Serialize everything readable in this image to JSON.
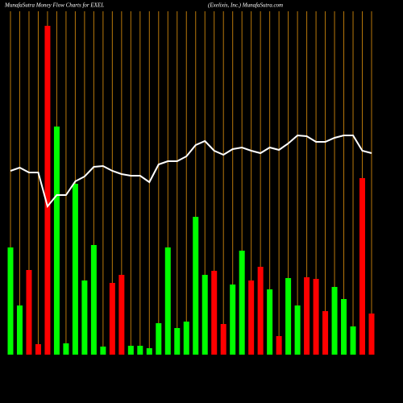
{
  "chart_data": {
    "type": "bar",
    "title": "MunafaSutra  Money Flow  Charts for EXEL",
    "subtitle": "(Exelixis,  Inc.) MunafaSutra.com",
    "categories": [
      null,
      null,
      null,
      null,
      null,
      null,
      null,
      null,
      null,
      null,
      null,
      null,
      null,
      null,
      null,
      null,
      null,
      null,
      null,
      null,
      null,
      null,
      null,
      null,
      null,
      null,
      null,
      null,
      null,
      null,
      null,
      null,
      null,
      null,
      null,
      null,
      null,
      null,
      null,
      null
    ],
    "values": [
      133,
      61,
      105,
      13,
      408,
      283,
      14,
      212,
      92,
      136,
      10,
      89,
      99,
      11,
      11,
      8,
      39,
      133,
      33,
      41,
      171,
      99,
      104,
      38,
      87,
      129,
      92,
      109,
      81,
      23,
      95,
      61,
      96,
      94,
      54,
      84,
      69,
      35,
      219,
      51
    ],
    "colors": [
      "#00ff00",
      "#00ff00",
      "#ff0000",
      "#ff0000",
      "#ff0000",
      "#00ff00",
      "#00ff00",
      "#00ff00",
      "#00ff00",
      "#00ff00",
      "#00ff00",
      "#ff0000",
      "#ff0000",
      "#00ff00",
      "#00ff00",
      "#00ff00",
      "#00ff00",
      "#00ff00",
      "#00ff00",
      "#00ff00",
      "#00ff00",
      "#00ff00",
      "#ff0000",
      "#ff0000",
      "#00ff00",
      "#00ff00",
      "#ff0000",
      "#ff0000",
      "#00ff00",
      "#ff0000",
      "#00ff00",
      "#00ff00",
      "#ff0000",
      "#ff0000",
      "#ff0000",
      "#00ff00",
      "#00ff00",
      "#00ff00",
      "#ff0000",
      "#ff0000"
    ],
    "line": {
      "color": "#ffffff",
      "values": [
        228,
        232,
        226,
        226,
        184,
        198,
        198,
        215,
        221,
        233,
        234,
        228,
        224,
        222,
        222,
        214,
        236,
        240,
        240,
        246,
        260,
        265,
        253,
        248,
        255,
        257,
        253,
        250,
        257,
        254,
        262,
        272,
        271,
        264,
        264,
        269,
        272,
        272,
        253,
        250
      ]
    },
    "ylim": [
      0,
      410
    ],
    "grid": true,
    "grid_color": "#b8780b"
  }
}
